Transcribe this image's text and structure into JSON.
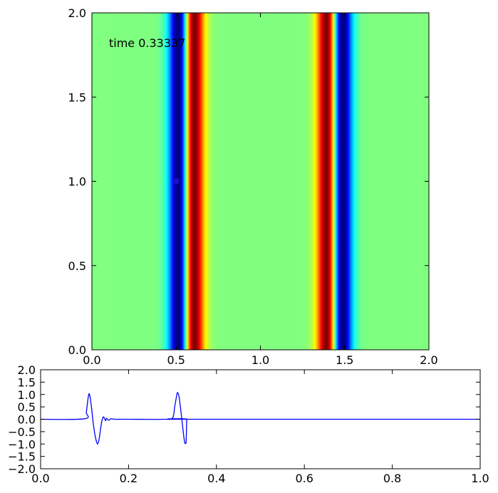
{
  "chart_data": [
    {
      "type": "heatmap",
      "annotation": "time 0.33337",
      "xlim": [
        0.0,
        2.0
      ],
      "ylim": [
        0.0,
        2.0
      ],
      "x_ticks": [
        "0.0",
        "0.5",
        "1.0",
        "1.5",
        "2.0"
      ],
      "y_ticks": [
        "0.0",
        "0.5",
        "1.0",
        "1.5",
        "2.0"
      ],
      "colormap": "jet",
      "background_color": "#80ff80",
      "marker": {
        "x": 0.5,
        "y": 1.0,
        "color": "#1a10c0"
      },
      "pulses": [
        {
          "center_x": 0.56,
          "width": 0.05,
          "polarity": "negative-then-positive"
        },
        {
          "center_x": 1.44,
          "width": 0.05,
          "polarity": "positive-then-negative"
        }
      ]
    },
    {
      "type": "line",
      "xlim": [
        0.0,
        1.0
      ],
      "ylim": [
        -2.0,
        2.0
      ],
      "x_ticks": [
        "0.0",
        "0.2",
        "0.4",
        "0.6",
        "0.8",
        "1.0"
      ],
      "y_ticks": [
        "2.0",
        "1.5",
        "1.0",
        "0.5",
        "0.0",
        "−0.5",
        "−1.0",
        "−1.5",
        "−2.0"
      ],
      "series": [
        {
          "color": "#0000ff",
          "x": [
            0.0,
            0.1,
            0.104,
            0.108,
            0.11,
            0.112,
            0.116,
            0.12,
            0.125,
            0.13,
            0.134,
            0.138,
            0.142,
            0.145,
            0.148,
            0.15,
            0.155,
            0.16,
            0.17,
            0.2,
            0.28,
            0.3,
            0.305,
            0.31,
            0.312,
            0.315,
            0.32,
            0.325,
            0.328,
            0.33,
            0.331,
            0.332,
            0.333,
            0.34,
            1.0
          ],
          "y": [
            0.0,
            0.02,
            0.3,
            0.85,
            1.02,
            0.95,
            0.45,
            -0.2,
            -0.75,
            -1.0,
            -0.7,
            -0.2,
            0.08,
            0.05,
            -0.06,
            0.04,
            -0.04,
            0.02,
            0.0,
            0.0,
            0.0,
            0.05,
            0.5,
            1.0,
            1.07,
            0.9,
            0.2,
            -0.6,
            -0.95,
            -0.97,
            -0.9,
            -0.3,
            0.0,
            0.0,
            0.0
          ]
        }
      ]
    }
  ]
}
